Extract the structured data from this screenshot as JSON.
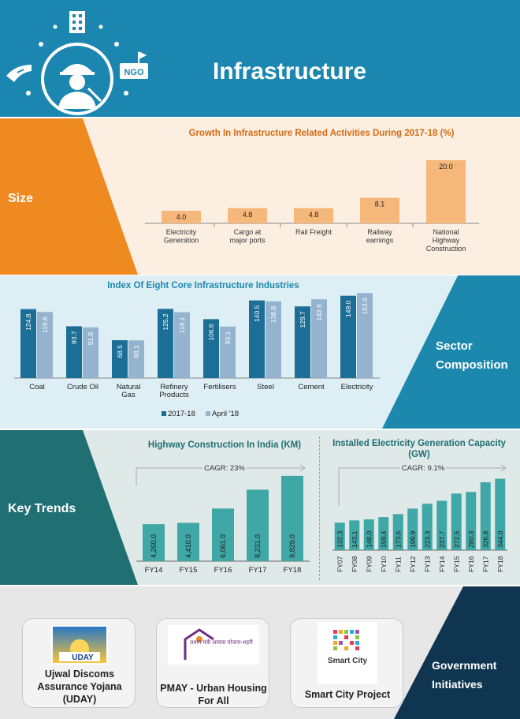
{
  "header": {
    "title": "Infrastructure",
    "ngo_label": "NGO",
    "color": "#1b87b0"
  },
  "sections": {
    "size": "Size",
    "sector": "Sector Composition",
    "trends": "Key Trends",
    "gov": "Government Initiatives"
  },
  "chart_data": [
    {
      "type": "bar",
      "title": "Growth In Infrastructure Related Activities During 2017-18 (%)",
      "categories": [
        "Electricity Generation",
        "Cargo at major ports",
        "Rail Freight",
        "Railway earnings",
        "National Highway Construction"
      ],
      "values": [
        4.0,
        4.8,
        4.8,
        8.1,
        20.0
      ],
      "value_labels": [
        "4.0",
        "4.8",
        "4.8",
        "8.1",
        "20.0"
      ],
      "color": "#f6b77a"
    },
    {
      "type": "bar",
      "title": "Index Of Eight Core Infrastructure Industries",
      "categories": [
        "Coal",
        "Crude Oil",
        "Natural Gas",
        "Refinery Products",
        "Fertilisers",
        "Steel",
        "Cement",
        "Electricity"
      ],
      "series": [
        {
          "name": "2017-18",
          "values": [
            124.8,
            93.7,
            68.5,
            125.2,
            106.6,
            140.5,
            129.7,
            149.0
          ],
          "labels": [
            "124.8",
            "93.7",
            "68.5",
            "125.2",
            "106.6",
            "140.5",
            "129.7",
            "149.0"
          ],
          "color": "#1d6e96"
        },
        {
          "name": "April '18",
          "values": [
            119.6,
            91.8,
            68.1,
            119.1,
            93.1,
            138.8,
            142.6,
            153.9
          ],
          "labels": [
            "119.6",
            "91.8",
            "68.1",
            "119.1",
            "93.1",
            "138.8",
            "142.6",
            "153.9"
          ],
          "color": "#93b3cf"
        }
      ],
      "legend": "bottom"
    },
    {
      "type": "bar",
      "title": "Highway Construction In India (KM)",
      "annotation": "CAGR: 23%",
      "categories": [
        "FY14",
        "FY15",
        "FY16",
        "FY17",
        "FY18"
      ],
      "values": [
        4260.0,
        4410.0,
        6061.0,
        8231.0,
        9829.0
      ],
      "value_labels": [
        "4,260.0",
        "4,410.0",
        "6,061.0",
        "8,231.0",
        "9,829.0"
      ],
      "color": "#3fa7a6"
    },
    {
      "type": "bar",
      "title": "Installed Electricity Generation Capacity (GW)",
      "annotation": "CAGR: 9.1%",
      "categories": [
        "FY07",
        "FY08",
        "FY09",
        "FY10",
        "FY11",
        "FY12",
        "FY13",
        "FY14",
        "FY15",
        "FY16",
        "FY17",
        "FY18"
      ],
      "values": [
        132.3,
        143.1,
        148.0,
        159.4,
        173.6,
        199.9,
        223.3,
        237.7,
        272.5,
        280.3,
        326.8,
        344.0
      ],
      "value_labels": [
        "132.3",
        "143.1",
        "148.0",
        "159.4",
        "173.6",
        "199.9",
        "223.3",
        "237.7",
        "272.5",
        "280.3",
        "326.8",
        "344.0"
      ],
      "color": "#3fa7a6"
    }
  ],
  "initiatives": [
    {
      "name": "Ujwal Discoms Assurance Yojana (UDAY)",
      "logo_text": "UDAY"
    },
    {
      "name": "PMAY - Urban Housing For All",
      "logo_text": "प्रधान मंत्री आवास योजना-शहरी"
    },
    {
      "name": "Smart City Project",
      "logo_text": "Smart City"
    }
  ]
}
